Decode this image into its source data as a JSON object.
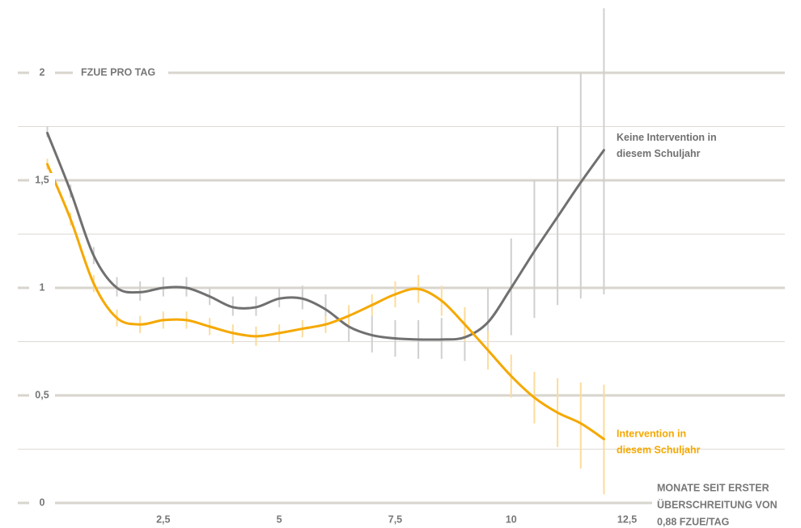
{
  "chart_data": {
    "type": "line",
    "ylabel": "FZUE PRO TAG",
    "xlabel": [
      "MONATE SEIT ERSTER",
      "ÜBERSCHREITUNG VON",
      "0,88 FZUE/TAG"
    ],
    "x": [
      0,
      0.5,
      1,
      1.5,
      2,
      2.5,
      3,
      3.5,
      4,
      4.5,
      5,
      5.5,
      6,
      6.5,
      7,
      7.5,
      8,
      8.5,
      9,
      9.5,
      10,
      10.5,
      11,
      11.5,
      12
    ],
    "series": [
      {
        "name": [
          "Keine Intervention in",
          "diesem Schuljahr"
        ],
        "color": "#707070",
        "band_color": "#cfcfcf",
        "values": [
          1.72,
          1.45,
          1.15,
          1.0,
          0.98,
          1.0,
          1.0,
          0.96,
          0.91,
          0.91,
          0.95,
          0.95,
          0.9,
          0.82,
          0.78,
          0.765,
          0.76,
          0.76,
          0.77,
          0.84,
          1.0,
          1.17,
          1.33,
          1.49,
          1.64
        ],
        "lower": [
          1.7,
          1.42,
          1.11,
          0.96,
          0.94,
          0.96,
          0.96,
          0.92,
          0.87,
          0.87,
          0.91,
          0.9,
          0.84,
          0.75,
          0.7,
          0.68,
          0.67,
          0.67,
          0.66,
          0.69,
          0.78,
          0.86,
          0.92,
          0.95,
          0.97
        ],
        "upper": [
          1.75,
          1.48,
          1.19,
          1.05,
          1.03,
          1.05,
          1.05,
          1.0,
          0.96,
          0.96,
          1.0,
          1.01,
          0.97,
          0.9,
          0.87,
          0.85,
          0.85,
          0.86,
          0.89,
          1.0,
          1.23,
          1.5,
          1.75,
          2.0,
          2.3
        ]
      },
      {
        "name": [
          "Intervention in",
          "diesem Schuljahr"
        ],
        "color": "#f5a800",
        "band_color": "#fbdc9a",
        "values": [
          1.575,
          1.32,
          1.02,
          0.86,
          0.83,
          0.85,
          0.85,
          0.82,
          0.79,
          0.775,
          0.79,
          0.81,
          0.83,
          0.87,
          0.92,
          0.97,
          0.995,
          0.94,
          0.83,
          0.71,
          0.59,
          0.49,
          0.42,
          0.37,
          0.297
        ],
        "lower": [
          1.55,
          1.29,
          0.98,
          0.82,
          0.79,
          0.81,
          0.81,
          0.78,
          0.74,
          0.73,
          0.75,
          0.77,
          0.79,
          0.82,
          0.87,
          0.91,
          0.93,
          0.87,
          0.75,
          0.62,
          0.49,
          0.37,
          0.26,
          0.16,
          0.04
        ],
        "upper": [
          1.6,
          1.35,
          1.06,
          0.9,
          0.87,
          0.89,
          0.89,
          0.86,
          0.83,
          0.82,
          0.83,
          0.85,
          0.87,
          0.92,
          0.97,
          1.03,
          1.06,
          1.01,
          0.91,
          0.8,
          0.69,
          0.61,
          0.58,
          0.56,
          0.55
        ]
      }
    ],
    "xlim": [
      0,
      15.9
    ],
    "ylim": [
      0,
      2.4
    ],
    "xticks": [
      {
        "value": 2.5,
        "label": "2,5"
      },
      5,
      {
        "value": 7.5,
        "label": "7,5"
      },
      10,
      {
        "value": 12.5,
        "label": "12,5"
      }
    ],
    "yticks": [
      0,
      {
        "value": 0.5,
        "label": "0,5"
      },
      1,
      {
        "value": 1.5,
        "label": "1,5"
      },
      2
    ],
    "minor_yticks": [
      0.25,
      0.75,
      1.25,
      1.75
    ],
    "grid": true
  }
}
